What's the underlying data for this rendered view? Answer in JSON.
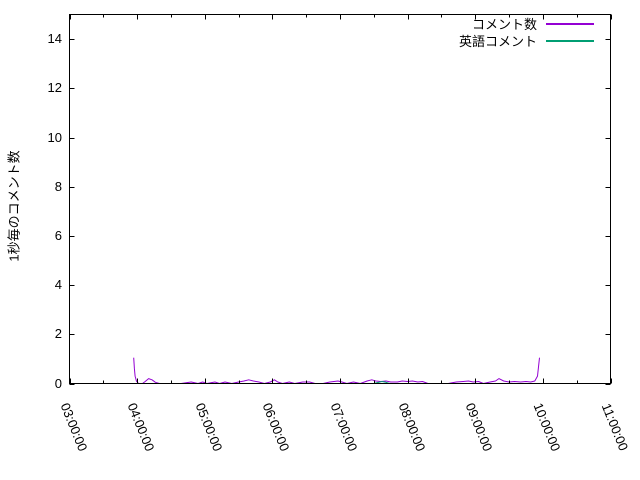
{
  "figure": {
    "background": "#ffffff",
    "border_color": "#000000",
    "text_color": "#000000"
  },
  "y_axis": {
    "title": "1秒毎のコメント数",
    "tick_labels": [
      "0",
      "2",
      "4",
      "6",
      "8",
      "10",
      "12",
      "14"
    ],
    "tick_values": [
      0,
      2,
      4,
      6,
      8,
      10,
      12,
      14
    ],
    "range": [
      0,
      15
    ]
  },
  "x_axis": {
    "tick_labels": [
      "03:00:00",
      "04:00:00",
      "05:00:00",
      "06:00:00",
      "07:00:00",
      "08:00:00",
      "09:00:00",
      "10:00:00",
      "11:00:00"
    ],
    "tick_hours": [
      3,
      4,
      5,
      6,
      7,
      8,
      9,
      10,
      11
    ],
    "minor_tick_interval_hours": 0.5,
    "range_hours": [
      3,
      11
    ]
  },
  "legend": {
    "position": "top-right-inside",
    "items": [
      {
        "label": "コメント数",
        "color": "#9400d3"
      },
      {
        "label": "英語コメント",
        "color": "#009e73"
      }
    ]
  },
  "chart_data": {
    "type": "line",
    "title": "",
    "xlabel": "",
    "ylabel": "1秒毎のコメント数",
    "x_tick_labels": [
      "03:00:00",
      "04:00:00",
      "05:00:00",
      "06:00:00",
      "07:00:00",
      "08:00:00",
      "09:00:00",
      "10:00:00",
      "11:00:00"
    ],
    "xlim_hours": [
      3,
      11
    ],
    "ylim": [
      0,
      15
    ],
    "grid": false,
    "legend_position": "top-right",
    "series": [
      {
        "name": "コメント数",
        "color": "#9400d3",
        "points_hours_value": [
          [
            3.95,
            1.05
          ],
          [
            3.96,
            0.6
          ],
          [
            3.97,
            0.3
          ],
          [
            3.99,
            0.1
          ],
          [
            4.02,
            0.0
          ],
          [
            4.08,
            0.0
          ],
          [
            4.12,
            0.08
          ],
          [
            4.17,
            0.2
          ],
          [
            4.22,
            0.15
          ],
          [
            4.27,
            0.05
          ],
          [
            4.33,
            0.0
          ],
          [
            4.5,
            0.0
          ],
          [
            4.65,
            0.0
          ],
          [
            4.8,
            0.06
          ],
          [
            4.9,
            0.0
          ],
          [
            4.97,
            0.06
          ],
          [
            5.03,
            0.0
          ],
          [
            5.15,
            0.06
          ],
          [
            5.22,
            0.0
          ],
          [
            5.3,
            0.06
          ],
          [
            5.4,
            0.0
          ],
          [
            5.5,
            0.06
          ],
          [
            5.58,
            0.1
          ],
          [
            5.65,
            0.15
          ],
          [
            5.72,
            0.1
          ],
          [
            5.8,
            0.06
          ],
          [
            5.88,
            0.0
          ],
          [
            5.97,
            0.06
          ],
          [
            6.03,
            0.15
          ],
          [
            6.08,
            0.06
          ],
          [
            6.15,
            0.0
          ],
          [
            6.25,
            0.06
          ],
          [
            6.33,
            0.0
          ],
          [
            6.45,
            0.06
          ],
          [
            6.55,
            0.06
          ],
          [
            6.63,
            0.0
          ],
          [
            6.75,
            0.0
          ],
          [
            6.85,
            0.06
          ],
          [
            6.97,
            0.1
          ],
          [
            7.03,
            0.06
          ],
          [
            7.1,
            0.0
          ],
          [
            7.2,
            0.06
          ],
          [
            7.3,
            0.0
          ],
          [
            7.4,
            0.1
          ],
          [
            7.47,
            0.15
          ],
          [
            7.53,
            0.1
          ],
          [
            7.6,
            0.08
          ],
          [
            7.68,
            0.1
          ],
          [
            7.75,
            0.06
          ],
          [
            7.85,
            0.06
          ],
          [
            7.92,
            0.1
          ],
          [
            8.0,
            0.08
          ],
          [
            8.07,
            0.1
          ],
          [
            8.15,
            0.06
          ],
          [
            8.22,
            0.08
          ],
          [
            8.3,
            0.0
          ],
          [
            8.45,
            0.0
          ],
          [
            8.6,
            0.0
          ],
          [
            8.72,
            0.06
          ],
          [
            8.82,
            0.08
          ],
          [
            8.9,
            0.1
          ],
          [
            8.97,
            0.06
          ],
          [
            9.05,
            0.08
          ],
          [
            9.12,
            0.0
          ],
          [
            9.22,
            0.06
          ],
          [
            9.3,
            0.1
          ],
          [
            9.35,
            0.2
          ],
          [
            9.42,
            0.1
          ],
          [
            9.5,
            0.06
          ],
          [
            9.58,
            0.08
          ],
          [
            9.67,
            0.06
          ],
          [
            9.75,
            0.08
          ],
          [
            9.82,
            0.06
          ],
          [
            9.88,
            0.1
          ],
          [
            9.92,
            0.3
          ],
          [
            9.95,
            1.05
          ]
        ]
      },
      {
        "name": "英語コメント",
        "color": "#009e73",
        "points_hours_value": [
          [
            7.5,
            0.0
          ],
          [
            7.56,
            0.04
          ],
          [
            7.62,
            0.08
          ],
          [
            7.68,
            0.05
          ],
          [
            7.73,
            0.0
          ]
        ]
      }
    ]
  }
}
